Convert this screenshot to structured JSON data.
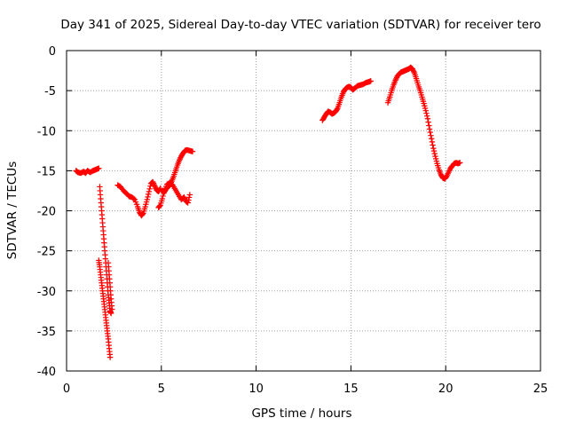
{
  "chart_data": {
    "type": "scatter",
    "title": "Day 341 of 2025, Sidereal Day-to-day VTEC variation (SDTVAR) for receiver tero",
    "xlabel": "GPS time / hours",
    "ylabel": "SDTVAR / TECUs",
    "xlim": [
      0,
      25
    ],
    "ylim": [
      -40,
      0
    ],
    "xticks": [
      0,
      5,
      10,
      15,
      20,
      25
    ],
    "yticks": [
      0,
      -5,
      -10,
      -15,
      -20,
      -25,
      -30,
      -35,
      -40
    ],
    "grid": true,
    "marker": "+",
    "color": "#ff0000",
    "segments": [
      [
        [
          0.5,
          -15.0
        ],
        [
          0.6,
          -15.2
        ],
        [
          0.75,
          -15.3
        ],
        [
          0.9,
          -15.1
        ],
        [
          1.0,
          -15.3
        ],
        [
          1.1,
          -15.0
        ],
        [
          1.25,
          -15.2
        ],
        [
          1.4,
          -15.0
        ],
        [
          1.5,
          -14.9
        ],
        [
          1.6,
          -14.8
        ],
        [
          1.7,
          -14.7
        ]
      ],
      [
        [
          1.7,
          -26.2
        ],
        [
          1.75,
          -27.0
        ],
        [
          1.8,
          -28.0
        ],
        [
          1.85,
          -29.0
        ],
        [
          1.9,
          -30.0
        ],
        [
          1.95,
          -31.0
        ],
        [
          2.0,
          -32.0
        ],
        [
          2.05,
          -33.0
        ],
        [
          2.1,
          -34.0
        ],
        [
          2.15,
          -35.0
        ],
        [
          2.2,
          -36.0
        ],
        [
          2.25,
          -37.2
        ],
        [
          2.3,
          -38.3
        ]
      ],
      [
        [
          1.75,
          -17.0
        ],
        [
          1.8,
          -18.5
        ],
        [
          1.85,
          -20.0
        ],
        [
          1.9,
          -21.5
        ],
        [
          1.95,
          -23.0
        ],
        [
          2.0,
          -24.5
        ],
        [
          2.05,
          -26.0
        ],
        [
          2.1,
          -27.5
        ],
        [
          2.15,
          -29.0
        ],
        [
          2.2,
          -30.5
        ],
        [
          2.25,
          -31.5
        ],
        [
          2.3,
          -32.5
        ],
        [
          2.35,
          -32.8
        ]
      ],
      [
        [
          2.2,
          -26.5
        ],
        [
          2.25,
          -28.0
        ],
        [
          2.3,
          -29.5
        ],
        [
          2.35,
          -31.0
        ],
        [
          2.4,
          -32.3
        ]
      ],
      [
        [
          2.7,
          -16.8
        ],
        [
          2.85,
          -17.0
        ],
        [
          3.0,
          -17.5
        ],
        [
          3.15,
          -17.8
        ],
        [
          3.3,
          -18.2
        ],
        [
          3.45,
          -18.3
        ],
        [
          3.6,
          -18.6
        ],
        [
          3.75,
          -19.5
        ],
        [
          3.85,
          -20.2
        ],
        [
          3.95,
          -20.6
        ],
        [
          4.05,
          -20.3
        ],
        [
          4.15,
          -19.5
        ],
        [
          4.25,
          -18.6
        ],
        [
          4.35,
          -17.6
        ],
        [
          4.45,
          -16.6
        ],
        [
          4.55,
          -16.4
        ],
        [
          4.65,
          -16.9
        ],
        [
          4.75,
          -17.4
        ],
        [
          4.85,
          -17.6
        ],
        [
          4.95,
          -17.2
        ]
      ],
      [
        [
          4.85,
          -19.6
        ],
        [
          4.95,
          -19.3
        ],
        [
          5.05,
          -18.5
        ],
        [
          5.15,
          -17.5
        ],
        [
          5.3,
          -16.7
        ],
        [
          5.45,
          -16.5
        ],
        [
          5.6,
          -16.8
        ],
        [
          5.75,
          -17.4
        ],
        [
          5.9,
          -18.0
        ],
        [
          6.05,
          -18.6
        ],
        [
          6.2,
          -18.3
        ],
        [
          6.3,
          -18.8
        ],
        [
          6.4,
          -19.0
        ],
        [
          6.5,
          -18.0
        ]
      ],
      [
        [
          5.05,
          -17.5
        ],
        [
          5.15,
          -17.7
        ],
        [
          5.25,
          -17.3
        ],
        [
          5.35,
          -17.0
        ],
        [
          5.45,
          -16.8
        ],
        [
          5.55,
          -16.3
        ],
        [
          5.65,
          -15.7
        ],
        [
          5.75,
          -15.0
        ],
        [
          5.85,
          -14.3
        ],
        [
          5.95,
          -13.7
        ],
        [
          6.05,
          -13.2
        ],
        [
          6.15,
          -12.8
        ],
        [
          6.25,
          -12.5
        ],
        [
          6.35,
          -12.4
        ],
        [
          6.5,
          -12.5
        ],
        [
          6.65,
          -12.6
        ]
      ],
      [
        [
          13.5,
          -8.7
        ],
        [
          13.6,
          -8.3
        ],
        [
          13.7,
          -7.9
        ],
        [
          13.8,
          -7.6
        ],
        [
          13.9,
          -7.7
        ],
        [
          14.0,
          -7.9
        ],
        [
          14.1,
          -7.8
        ],
        [
          14.2,
          -7.6
        ],
        [
          14.3,
          -7.2
        ],
        [
          14.4,
          -6.5
        ],
        [
          14.5,
          -5.8
        ],
        [
          14.6,
          -5.2
        ],
        [
          14.7,
          -4.8
        ],
        [
          14.8,
          -4.6
        ],
        [
          14.9,
          -4.5
        ],
        [
          15.0,
          -4.6
        ],
        [
          15.1,
          -4.9
        ],
        [
          15.2,
          -4.7
        ],
        [
          15.35,
          -4.4
        ],
        [
          15.5,
          -4.3
        ],
        [
          15.65,
          -4.2
        ],
        [
          15.8,
          -4.0
        ],
        [
          15.95,
          -3.9
        ],
        [
          16.05,
          -3.8
        ]
      ],
      [
        [
          16.95,
          -6.5
        ],
        [
          17.05,
          -5.8
        ],
        [
          17.15,
          -5.0
        ],
        [
          17.25,
          -4.3
        ],
        [
          17.35,
          -3.7
        ],
        [
          17.45,
          -3.2
        ],
        [
          17.55,
          -2.9
        ],
        [
          17.65,
          -2.7
        ],
        [
          17.75,
          -2.6
        ],
        [
          17.85,
          -2.5
        ],
        [
          17.95,
          -2.4
        ],
        [
          18.05,
          -2.3
        ],
        [
          18.15,
          -2.1
        ],
        [
          18.25,
          -2.3
        ],
        [
          18.35,
          -2.8
        ],
        [
          18.45,
          -3.5
        ],
        [
          18.55,
          -4.3
        ],
        [
          18.65,
          -5.0
        ],
        [
          18.75,
          -5.8
        ],
        [
          18.85,
          -6.6
        ],
        [
          18.95,
          -7.5
        ],
        [
          19.05,
          -8.5
        ],
        [
          19.15,
          -9.8
        ],
        [
          19.25,
          -11.0
        ],
        [
          19.35,
          -12.2
        ],
        [
          19.45,
          -13.2
        ],
        [
          19.55,
          -14.1
        ],
        [
          19.65,
          -14.9
        ],
        [
          19.75,
          -15.5
        ],
        [
          19.85,
          -15.9
        ],
        [
          19.95,
          -16.0
        ],
        [
          20.05,
          -15.7
        ],
        [
          20.15,
          -15.2
        ],
        [
          20.25,
          -14.7
        ],
        [
          20.35,
          -14.4
        ],
        [
          20.45,
          -14.1
        ],
        [
          20.55,
          -14.0
        ],
        [
          20.65,
          -14.1
        ],
        [
          20.75,
          -14.0
        ]
      ]
    ]
  }
}
